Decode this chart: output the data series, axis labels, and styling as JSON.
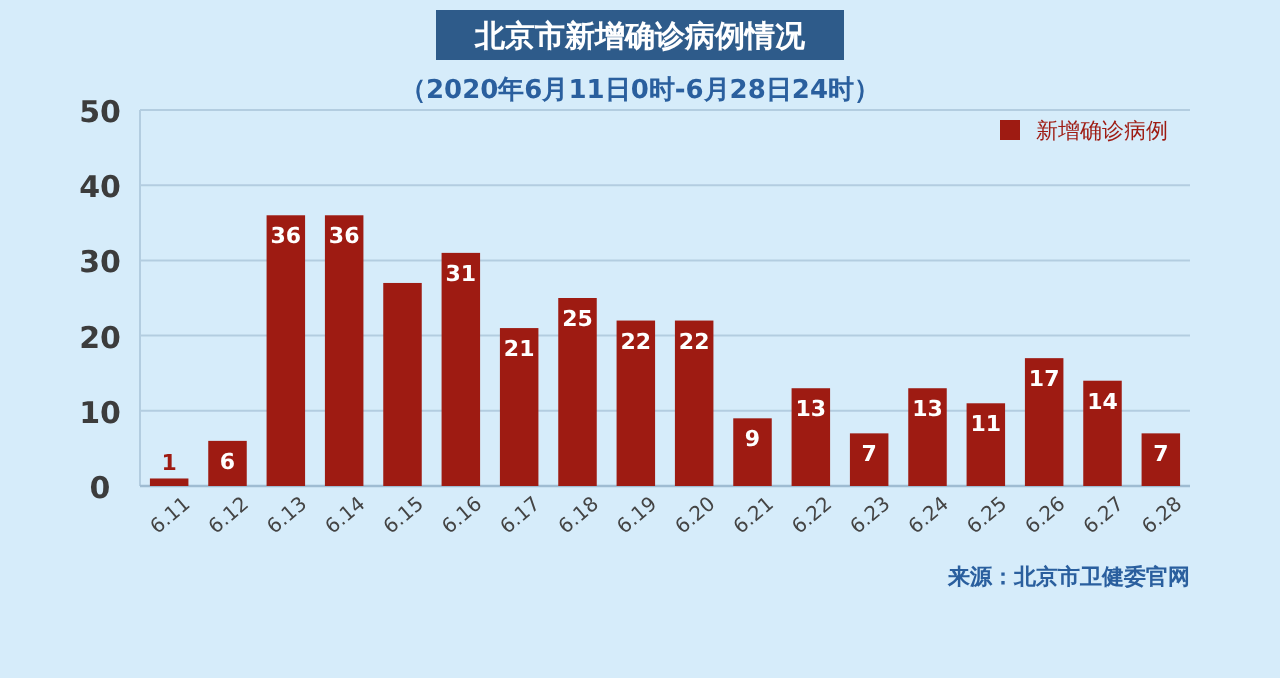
{
  "chart_data": {
    "type": "bar",
    "title": "北京市新增确诊病例情况",
    "subtitle": "（2020年6月11日0时-6月28日24时）",
    "categories": [
      "6.11",
      "6.12",
      "6.13",
      "6.14",
      "6.15",
      "6.16",
      "6.17",
      "6.18",
      "6.19",
      "6.20",
      "6.21",
      "6.22",
      "6.23",
      "6.24",
      "6.25",
      "6.26",
      "6.27",
      "6.28"
    ],
    "series": [
      {
        "name": "新增确诊病例",
        "color": "#9e1b12",
        "values": [
          1,
          6,
          36,
          36,
          27,
          31,
          21,
          25,
          22,
          22,
          9,
          13,
          7,
          13,
          11,
          17,
          14,
          7
        ],
        "value_labels": [
          "1",
          "6",
          "36",
          "36",
          null,
          "31",
          "21",
          "25",
          "22",
          "22",
          "9",
          "13",
          "7",
          "13",
          "11",
          "17",
          "14",
          "7"
        ]
      }
    ],
    "ylim": [
      0,
      50
    ],
    "yticks": [
      0,
      10,
      20,
      30,
      40,
      50
    ],
    "grid": "y",
    "legend": "top right",
    "annotations": [
      "来源：北京市卫健委官网"
    ]
  }
}
